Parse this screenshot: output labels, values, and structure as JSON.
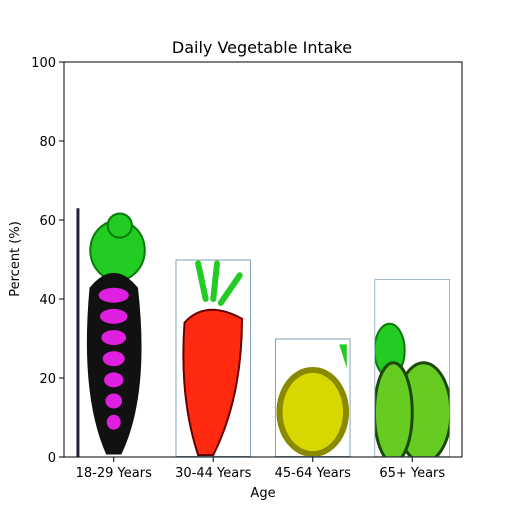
{
  "chart_data": {
    "type": "bar",
    "title": "Daily Vegetable Intake",
    "xlabel": "Age",
    "ylabel": "Percent (%)",
    "categories": [
      "18-29 Years",
      "30-44 Years",
      "45-64 Years",
      "65+ Years"
    ],
    "values": [
      63,
      50,
      30,
      45
    ],
    "ylim": [
      0,
      100
    ],
    "yticks": [
      0,
      20,
      40,
      60,
      80,
      100
    ],
    "bar_images": [
      "radish-icon",
      "carrot-icon",
      "squash-icon",
      "cabbage-icon"
    ],
    "colors": {
      "radish_body": "#e020e0",
      "radish_dark": "#111111",
      "leaf": "#22cc22",
      "leaf_dark": "#0a7a0a",
      "carrot": "#ff2a10",
      "squash": "#d8d800",
      "squash_dark": "#8a8a00",
      "cabbage": "#66cc22",
      "bar_frame": "#7f9fb8"
    }
  }
}
